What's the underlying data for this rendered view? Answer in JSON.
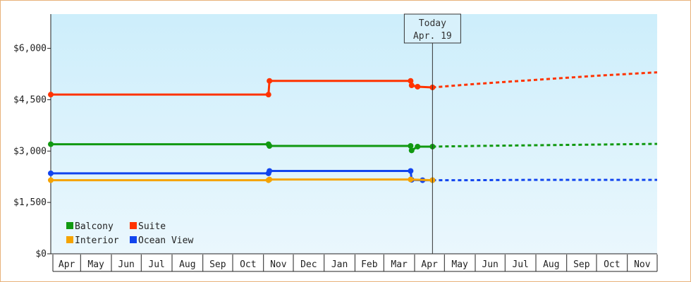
{
  "chart_data": {
    "type": "line",
    "title": "",
    "xlabel": "",
    "ylabel": "",
    "ylim": [
      0,
      7000
    ],
    "y_ticks": [
      0,
      1500,
      3000,
      4500,
      6000
    ],
    "y_tick_labels": [
      "$0",
      "$1,500",
      "$3,000",
      "$4,500",
      "$6,000"
    ],
    "x_range": [
      "2023-04-01",
      "2024-12-01"
    ],
    "month_labels": [
      "Apr",
      "May",
      "Jun",
      "Jul",
      "Aug",
      "Sep",
      "Oct",
      "Nov",
      "Dec",
      "Jan",
      "Feb",
      "Mar",
      "Apr",
      "May",
      "Jun",
      "Jul",
      "Aug",
      "Sep",
      "Oct",
      "Nov"
    ],
    "today": {
      "line1": "Today",
      "line2": "Apr. 19",
      "date": "2024-04-19"
    },
    "legend_position": "bottom-left",
    "background_gradient": [
      "#cdeefb",
      "#eaf7fd"
    ],
    "series": [
      {
        "name": "Suite",
        "color": "#ff3300",
        "points": [
          [
            "2023-04-01",
            4650
          ],
          [
            "2023-11-06",
            4650
          ],
          [
            "2023-11-07",
            5050
          ],
          [
            "2024-03-28",
            5050
          ],
          [
            "2024-03-29",
            4920
          ],
          [
            "2024-04-04",
            4880
          ],
          [
            "2024-04-19",
            4860
          ]
        ],
        "forecast": [
          [
            "2024-04-19",
            4860
          ],
          [
            "2024-06-01",
            4960
          ],
          [
            "2024-08-01",
            5080
          ],
          [
            "2024-10-01",
            5200
          ],
          [
            "2024-12-01",
            5300
          ]
        ]
      },
      {
        "name": "Balcony",
        "color": "#119911",
        "points": [
          [
            "2023-04-01",
            3200
          ],
          [
            "2023-11-06",
            3200
          ],
          [
            "2023-11-07",
            3150
          ],
          [
            "2024-03-28",
            3150
          ],
          [
            "2024-03-29",
            3020
          ],
          [
            "2024-04-04",
            3130
          ],
          [
            "2024-04-19",
            3130
          ]
        ],
        "forecast": [
          [
            "2024-04-19",
            3130
          ],
          [
            "2024-06-01",
            3150
          ],
          [
            "2024-08-01",
            3170
          ],
          [
            "2024-10-01",
            3190
          ],
          [
            "2024-12-01",
            3210
          ]
        ]
      },
      {
        "name": "Ocean View",
        "color": "#1144ee",
        "points": [
          [
            "2023-04-01",
            2350
          ],
          [
            "2023-11-06",
            2350
          ],
          [
            "2023-11-07",
            2420
          ],
          [
            "2024-03-28",
            2420
          ],
          [
            "2024-03-29",
            2160
          ],
          [
            "2024-04-09",
            2150
          ],
          [
            "2024-04-19",
            2150
          ]
        ],
        "forecast": [
          [
            "2024-04-19",
            2150
          ],
          [
            "2024-06-01",
            2150
          ],
          [
            "2024-08-01",
            2160
          ],
          [
            "2024-10-01",
            2160
          ],
          [
            "2024-12-01",
            2160
          ]
        ]
      },
      {
        "name": "Interior",
        "color": "#f5a300",
        "points": [
          [
            "2023-04-01",
            2150
          ],
          [
            "2023-11-06",
            2150
          ],
          [
            "2023-11-07",
            2170
          ],
          [
            "2024-03-28",
            2170
          ],
          [
            "2024-04-19",
            2150
          ]
        ],
        "forecast": []
      }
    ],
    "legend": [
      {
        "name": "Balcony",
        "color": "#119911"
      },
      {
        "name": "Suite",
        "color": "#ff3300"
      },
      {
        "name": "Interior",
        "color": "#f5a300"
      },
      {
        "name": "Ocean View",
        "color": "#1144ee"
      }
    ],
    "grid": false
  }
}
